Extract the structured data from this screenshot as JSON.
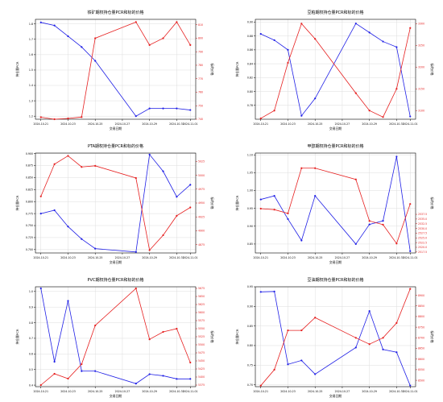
{
  "colors": {
    "left_series": "#1f1fe6",
    "right_series": "#e61f1f",
    "axis": "#000000",
    "grid": "#dddddd"
  },
  "chart_data": [
    {
      "type": "line",
      "title": "铁矿期权持仓量PCR和标的价格",
      "xlabel": "交易日期",
      "ylabel_left": "持仓量PCR",
      "ylabel_right": "标的价格",
      "grid": true,
      "x_ticks": [
        "2024-10-21",
        "2024-10-23",
        "2024-10-25",
        "2024-10-27",
        "2024-10-29",
        "2024-10-31",
        "2024-11-01"
      ],
      "x": [
        "2024-10-21",
        "2024-10-22",
        "2024-10-23",
        "2024-10-24",
        "2024-10-25",
        "2024-10-28",
        "2024-10-29",
        "2024-10-30",
        "2024-10-31",
        "2024-11-01"
      ],
      "left": {
        "ylim": [
          1.18,
          1.83
        ],
        "ticks": [
          "1.2",
          "1.3",
          "1.4",
          "1.5",
          "1.6",
          "1.7",
          "1.8"
        ],
        "values": [
          1.81,
          1.79,
          1.72,
          1.65,
          1.56,
          1.2,
          1.25,
          1.25,
          1.25,
          1.24
        ]
      },
      "right": {
        "ylim": [
          740,
          814
        ],
        "ticks": [
          "740",
          "750",
          "760",
          "770",
          "780",
          "790",
          "800",
          "810"
        ],
        "values": [
          741.5,
          740,
          740.6,
          741.6,
          800,
          812,
          795,
          800,
          812,
          795
        ]
      }
    },
    {
      "type": "line",
      "title": "豆粕期权持仓量PCR和标的价格",
      "xlabel": "交易日期",
      "ylabel_left": "持仓量PCR",
      "ylabel_right": "标的价格",
      "grid": true,
      "x_ticks": [
        "2024-10-21",
        "2024-10-23",
        "2024-10-25",
        "2024-10-27",
        "2024-10-29",
        "2024-10-31",
        "2024-11-01"
      ],
      "x": [
        "2024-10-21",
        "2024-10-22",
        "2024-10-23",
        "2024-10-24",
        "2024-10-25",
        "2024-10-28",
        "2024-10-29",
        "2024-10-30",
        "2024-10-31",
        "2024-11-01"
      ],
      "left": {
        "ylim": [
          0.76,
          0.904
        ],
        "ticks": [
          "0.78",
          "0.80",
          "0.82",
          "0.84",
          "0.86",
          "0.88",
          "0.90"
        ],
        "values": [
          0.883,
          0.874,
          0.86,
          0.765,
          0.79,
          0.898,
          0.885,
          0.872,
          0.864,
          0.764
        ]
      },
      "right": {
        "ylim": [
          3080,
          3310
        ],
        "ticks": [
          "3100",
          "3150",
          "3200",
          "3250",
          "3300"
        ],
        "values": [
          3082,
          3100,
          3210,
          3300,
          3265,
          3140,
          3100,
          3085,
          3150,
          3290
        ]
      }
    },
    {
      "type": "line",
      "title": "PTA期权持仓量PCR和标的价格",
      "xlabel": "交易日期",
      "ylabel_left": "持仓量PCR",
      "ylabel_right": "标的价格",
      "grid": true,
      "x_ticks": [
        "2024-10-21",
        "2024-10-23",
        "2024-10-25",
        "2024-10-27",
        "2024-10-29",
        "2024-10-31",
        "2024-11-01"
      ],
      "x": [
        "2024-10-21",
        "2024-10-22",
        "2024-10-23",
        "2024-10-24",
        "2024-10-25",
        "2024-10-28",
        "2024-10-29",
        "2024-10-30",
        "2024-10-31",
        "2024-11-01"
      ],
      "left": {
        "ylim": [
          0.693,
          0.901
        ],
        "ticks": [
          "0.700",
          "0.725",
          "0.750",
          "0.775",
          "0.800",
          "0.825",
          "0.850",
          "0.875",
          "0.900"
        ],
        "values": [
          0.775,
          0.782,
          0.748,
          0.722,
          0.702,
          0.695,
          0.898,
          0.863,
          0.81,
          0.835
        ]
      },
      "right": {
        "ylim": [
          4860,
          5040
        ],
        "ticks": [
          "4875",
          "4900",
          "4925",
          "4950",
          "4975",
          "5000",
          "5025"
        ],
        "values": [
          4962,
          5020,
          5035,
          5015,
          5017,
          4995,
          4865,
          4892,
          4927,
          4942
        ]
      }
    },
    {
      "type": "line",
      "title": "甲醇期权持仓量PCR和标的价格",
      "xlabel": "交易日期",
      "ylabel_left": "持仓量PCR",
      "ylabel_right": "标的价格",
      "grid": true,
      "x_ticks": [
        "2024-10-21",
        "2024-10-23",
        "2024-10-25",
        "2024-10-27",
        "2024-10-29",
        "2024-10-31",
        "2024-11-01"
      ],
      "x": [
        "2024-10-21",
        "2024-10-22",
        "2024-10-23",
        "2024-10-24",
        "2024-10-25",
        "2024-10-28",
        "2024-10-29",
        "2024-10-30",
        "2024-10-31",
        "2024-11-01"
      ],
      "left": {
        "ylim": [
          0.825,
          1.105
        ],
        "ticks": [
          "0.85",
          "0.90",
          "0.95",
          "1.00",
          "1.05",
          "1.10"
        ],
        "values": [
          0.975,
          0.985,
          0.92,
          0.86,
          0.985,
          0.85,
          0.905,
          0.915,
          1.095,
          0.83
        ]
      },
      "right": {
        "ylim": [
          2517,
          2570
        ],
        "ticks": [
          "2517.5",
          "2520.0",
          "2522.5",
          "2525.0",
          "2527.5",
          "2530.0",
          "2532.5",
          "2535.0",
          "2537.5"
        ],
        "values": [
          2540.5,
          2540,
          2538,
          2562,
          2562,
          2556,
          2534,
          2532,
          2522,
          2543
        ]
      }
    },
    {
      "type": "line",
      "title": "PVC期权持仓量PCR和标的价格",
      "xlabel": "交易日期",
      "ylabel_left": "持仓量PCR",
      "ylabel_right": "标的价格",
      "grid": true,
      "x_ticks": [
        "2024-10-21",
        "2024-10-23",
        "2024-10-25",
        "2024-10-27",
        "2024-10-29",
        "2024-10-31",
        "2024-11-01"
      ],
      "x": [
        "2024-10-21",
        "2024-10-22",
        "2024-10-23",
        "2024-10-24",
        "2024-10-25",
        "2024-10-28",
        "2024-10-29",
        "2024-10-30",
        "2024-10-31",
        "2024-11-01"
      ],
      "left": {
        "ylim": [
          0.39,
          1.03
        ],
        "ticks": [
          "0.4",
          "0.5",
          "0.6",
          "0.7",
          "0.8",
          "0.9",
          "1.0"
        ],
        "values": [
          1.02,
          0.55,
          0.94,
          0.49,
          0.49,
          0.41,
          0.47,
          0.46,
          0.44,
          0.44
        ]
      },
      "right": {
        "ylim": [
          5370,
          5680
        ],
        "ticks": [
          "5375",
          "5400",
          "5425",
          "5450",
          "5475",
          "5500",
          "5525",
          "5550",
          "5575",
          "5600",
          "5625",
          "5650",
          "5675"
        ],
        "values": [
          5375,
          5410,
          5395,
          5440,
          5560,
          5675,
          5517,
          5540,
          5550,
          5445
        ]
      }
    },
    {
      "type": "line",
      "title": "豆油期权持仓量PCR和标的价格",
      "xlabel": "交易日期",
      "ylabel_left": "持仓量PCR",
      "ylabel_right": "标的价格",
      "grid": true,
      "x_ticks": [
        "2024-10-21",
        "2024-10-23",
        "2024-10-25",
        "2024-10-27",
        "2024-10-29",
        "2024-10-31",
        "2024-11-01"
      ],
      "x": [
        "2024-10-21",
        "2024-10-22",
        "2024-10-23",
        "2024-10-24",
        "2024-10-25",
        "2024-10-28",
        "2024-10-29",
        "2024-10-30",
        "2024-10-31",
        "2024-11-01"
      ],
      "left": {
        "ylim": [
          0.695,
          0.95
        ],
        "ticks": [
          "0.70",
          "0.75",
          "0.80",
          "0.85",
          "0.90",
          "0.95"
        ],
        "values": [
          0.937,
          0.938,
          0.752,
          0.762,
          0.727,
          0.795,
          0.888,
          0.79,
          0.783,
          0.698
        ]
      },
      "right": {
        "ylim": [
          8470,
          8940
        ],
        "ticks": [
          "8500",
          "8550",
          "8600",
          "8650",
          "8700",
          "8750",
          "8800",
          "8850",
          "8900"
        ],
        "values": [
          8475,
          8550,
          8735,
          8735,
          8795,
          8700,
          8670,
          8700,
          8770,
          8930
        ]
      }
    }
  ]
}
